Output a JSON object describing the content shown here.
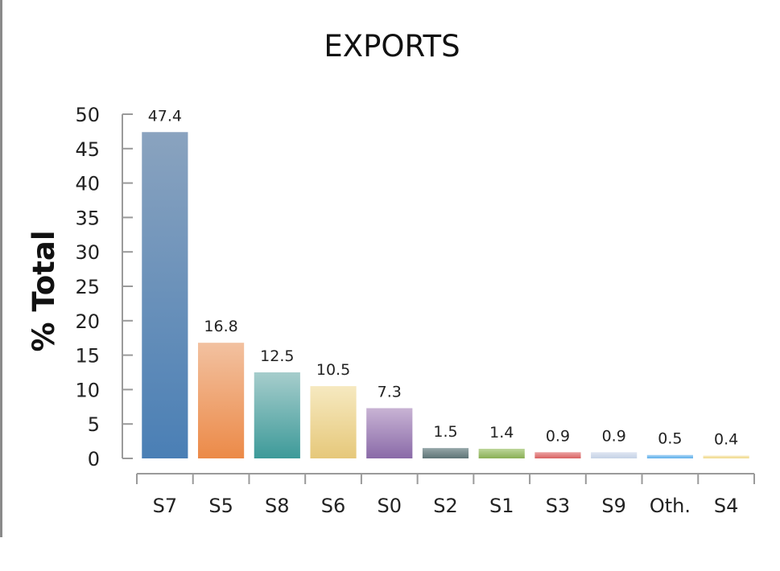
{
  "chart_data": {
    "type": "bar",
    "title": "EXPORTS",
    "ylabel": "% Total",
    "xlabel": "",
    "ylim": [
      0,
      50
    ],
    "yticks": [
      0,
      5,
      10,
      15,
      20,
      25,
      30,
      35,
      40,
      45,
      50
    ],
    "categories": [
      "S7",
      "S5",
      "S8",
      "S6",
      "S0",
      "S2",
      "S1",
      "S3",
      "S9",
      "Oth.",
      "S4"
    ],
    "values": [
      47.4,
      16.8,
      12.5,
      10.5,
      7.3,
      1.5,
      1.4,
      0.9,
      0.9,
      0.5,
      0.4
    ],
    "data_labels": [
      "47.4",
      "16.8",
      "12.5",
      "10.5",
      "7.3",
      "1.5",
      "1.4",
      "0.9",
      "0.9",
      "0.5",
      "0.4"
    ],
    "colors": [
      [
        "#8aa3bf",
        "#4a7fb5"
      ],
      [
        "#f2c1a0",
        "#ec8a48"
      ],
      [
        "#a6cdcc",
        "#3d9a99"
      ],
      [
        "#f6e9c0",
        "#e6c87a"
      ],
      [
        "#c8b3d4",
        "#8a6aa8"
      ],
      [
        "#95a6a8",
        "#5e7476"
      ],
      [
        "#bdd69a",
        "#8aaf56"
      ],
      [
        "#eba2a2",
        "#d96262"
      ],
      [
        "#dfe6f2",
        "#c5d2e6"
      ],
      [
        "#a5d3f4",
        "#5fb0ea"
      ],
      [
        "#f8ecc4",
        "#f0d98a"
      ]
    ],
    "grid": false,
    "legend": "none"
  }
}
